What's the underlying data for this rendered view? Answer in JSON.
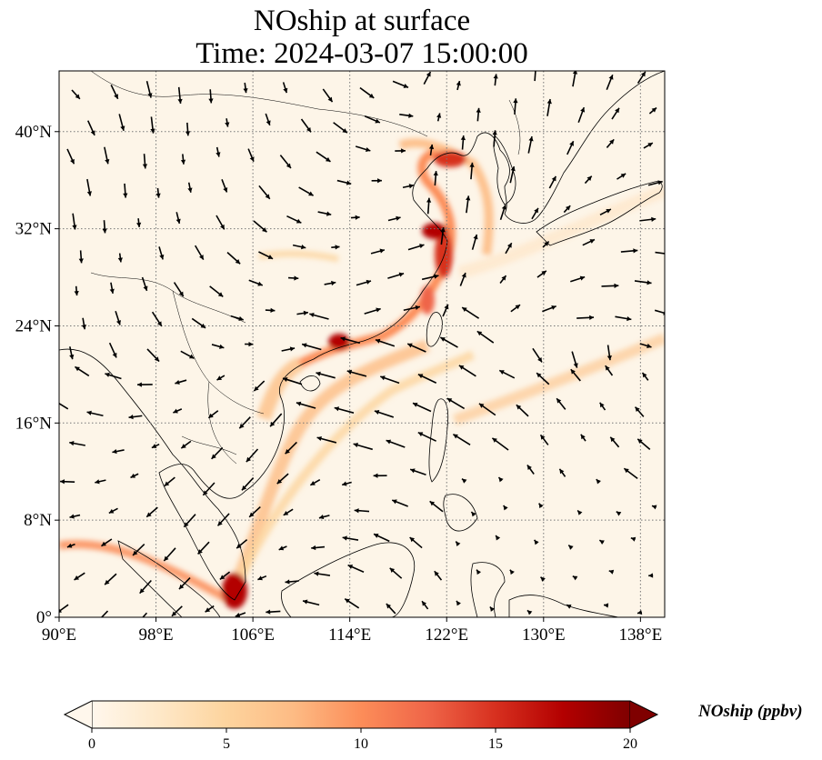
{
  "title": {
    "line1": "NOship at surface",
    "line2": "Time: 2024-03-07 15:00:00"
  },
  "map": {
    "lon_range": [
      90,
      140
    ],
    "lat_range": [
      0,
      45
    ],
    "lon_ticks": [
      {
        "value": 90,
        "label": "90°E"
      },
      {
        "value": 98,
        "label": "98°E"
      },
      {
        "value": 106,
        "label": "106°E"
      },
      {
        "value": 114,
        "label": "114°E"
      },
      {
        "value": 122,
        "label": "122°E"
      },
      {
        "value": 130,
        "label": "130°E"
      },
      {
        "value": 138,
        "label": "138°E"
      }
    ],
    "lat_ticks": [
      {
        "value": 0,
        "label": "0°"
      },
      {
        "value": 8,
        "label": "8°N"
      },
      {
        "value": 16,
        "label": "16°N"
      },
      {
        "value": 24,
        "label": "24°N"
      },
      {
        "value": 32,
        "label": "32°N"
      },
      {
        "value": 40,
        "label": "40°N"
      }
    ],
    "gridlines": true,
    "gridline_style": "dotted",
    "background_color": "#fdf5e8",
    "coastline_color": "#000000"
  },
  "colorbar": {
    "label": "NOship (ppbv)",
    "min": 0,
    "max": 20,
    "ticks": [
      0,
      5,
      10,
      15,
      20
    ],
    "tick_labels": [
      "0",
      "5",
      "10",
      "15",
      "20"
    ],
    "extend": "both",
    "colormap": "OrRd",
    "colors": [
      "#fff7ec",
      "#fee8c8",
      "#fdd49e",
      "#fdbb84",
      "#fc8d59",
      "#ef6548",
      "#d7301f",
      "#b30000",
      "#7f0000"
    ]
  }
}
